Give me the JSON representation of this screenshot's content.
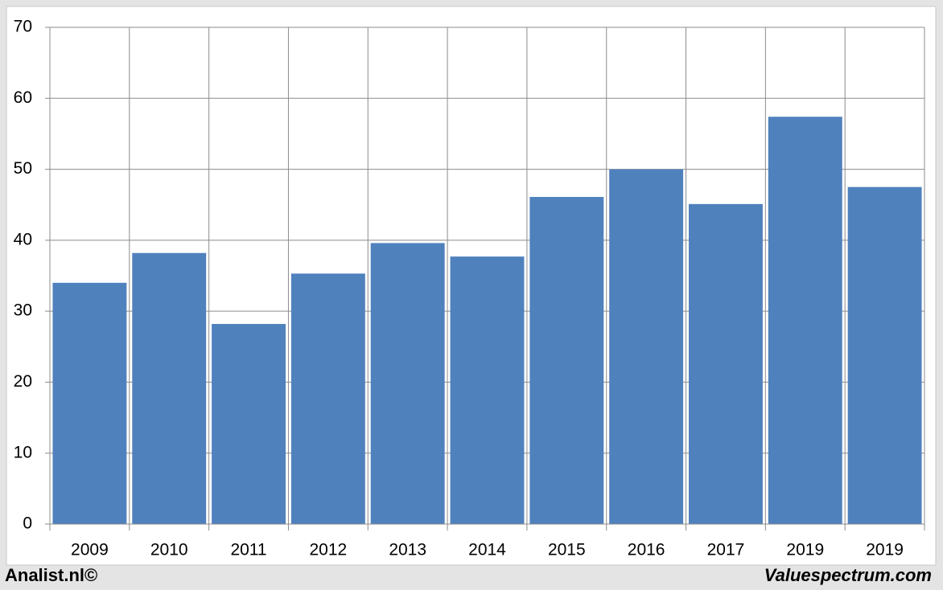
{
  "chart_data": {
    "type": "bar",
    "categories": [
      "2009",
      "2010",
      "2011",
      "2012",
      "2013",
      "2014",
      "2015",
      "2016",
      "2017",
      "2019",
      "2019"
    ],
    "values": [
      34.0,
      38.2,
      28.2,
      35.3,
      39.6,
      37.7,
      46.1,
      50.0,
      45.1,
      57.4,
      47.5
    ],
    "color": "#4f81bd",
    "ylim": [
      0,
      70
    ],
    "yticks": [
      0,
      10,
      20,
      30,
      40,
      50,
      60,
      70
    ],
    "grid": true,
    "left_note": "Analist.nl©",
    "right_note": "Valuespectrum.com"
  }
}
